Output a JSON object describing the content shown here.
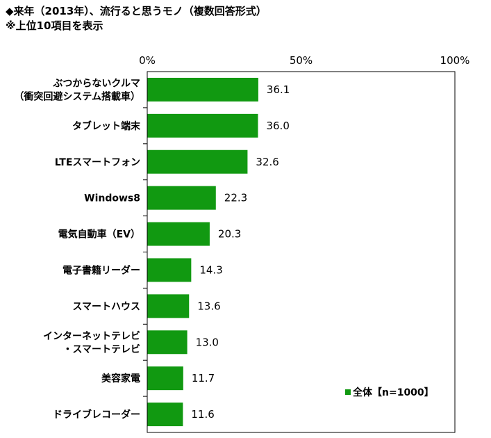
{
  "header": {
    "title": "◆来年（2013年）、流行ると思うモノ（複数回答形式）",
    "note": "※上位10項目を表示"
  },
  "chart_data": {
    "type": "bar",
    "orientation": "horizontal",
    "categories": [
      [
        "ぶつからないクルマ",
        "（衝突回避システム搭載車）"
      ],
      [
        "タブレット端末"
      ],
      [
        "LTEスマートフォン"
      ],
      [
        "Windows8"
      ],
      [
        "電気自動車（EV）"
      ],
      [
        "電子書籍リーダー"
      ],
      [
        "スマートハウス"
      ],
      [
        "インターネットテレビ",
        "・スマートテレビ"
      ],
      [
        "美容家電"
      ],
      [
        "ドライブレコーダー"
      ]
    ],
    "value_labels": [
      "36.1",
      "36.0",
      "32.6",
      "22.3",
      "20.3",
      "14.3",
      "13.6",
      "13.0",
      "11.7",
      "11.6"
    ],
    "series": [
      {
        "name": "全体【n=1000】",
        "color": "#119911",
        "values": [
          36.1,
          36.0,
          32.6,
          22.3,
          20.3,
          14.3,
          13.6,
          13.0,
          11.7,
          11.6
        ]
      }
    ],
    "xlim": [
      0,
      100
    ],
    "x_ticks": [
      0,
      50,
      100
    ],
    "x_tick_labels": [
      "0%",
      "50%",
      "100%"
    ],
    "legend": {
      "label": "全体【n=1000】",
      "position": "bottom-right"
    },
    "grid": false
  }
}
